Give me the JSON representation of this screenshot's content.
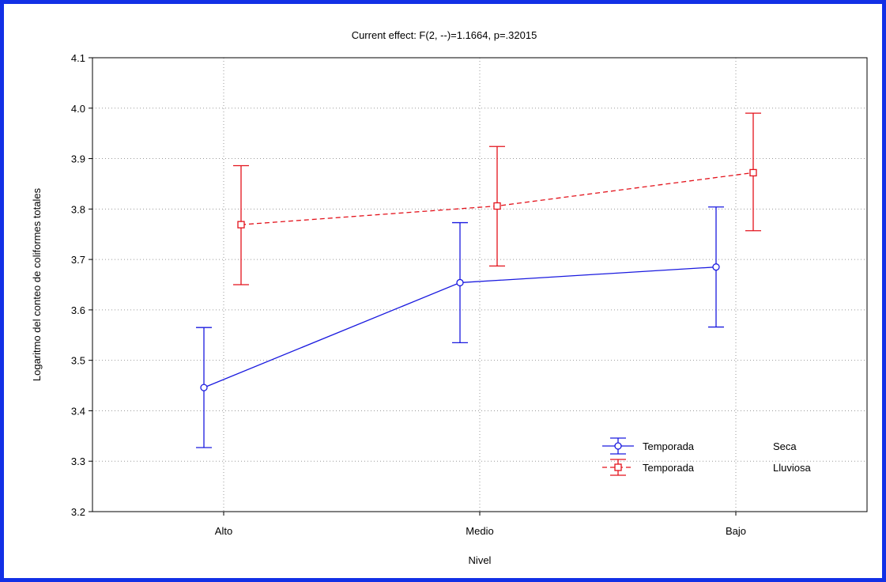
{
  "chart_data": {
    "type": "line",
    "title": "Current effect: F(2, --)=1.1664, p=.32015",
    "xlabel": "Nivel",
    "ylabel": "Logaritmo del conteo de coliformes totales",
    "categories": [
      "Alto",
      "Medio",
      "Bajo"
    ],
    "ylim": [
      3.2,
      4.1
    ],
    "yticks": [
      "3.2",
      "3.3",
      "3.4",
      "3.5",
      "3.6",
      "3.7",
      "3.8",
      "3.9",
      "4.0",
      "4.1"
    ],
    "grid": true,
    "legend_position": "bottom-right",
    "legend_header": "Temporada",
    "series": [
      {
        "name": "Seca",
        "legend_label": "Temporada",
        "legend_value": "Seca",
        "color": "#1a1adf",
        "line_style": "solid",
        "marker": "circle",
        "values": [
          3.446,
          3.654,
          3.685
        ],
        "lower": [
          3.327,
          3.535,
          3.566
        ],
        "upper": [
          3.565,
          3.773,
          3.804
        ]
      },
      {
        "name": "Lluviosa",
        "legend_label": "Temporada",
        "legend_value": "Lluviosa",
        "color": "#e3121b",
        "line_style": "dashed",
        "marker": "square",
        "values": [
          3.769,
          3.806,
          3.872
        ],
        "lower": [
          3.65,
          3.687,
          3.757
        ],
        "upper": [
          3.886,
          3.924,
          3.99
        ]
      }
    ]
  }
}
